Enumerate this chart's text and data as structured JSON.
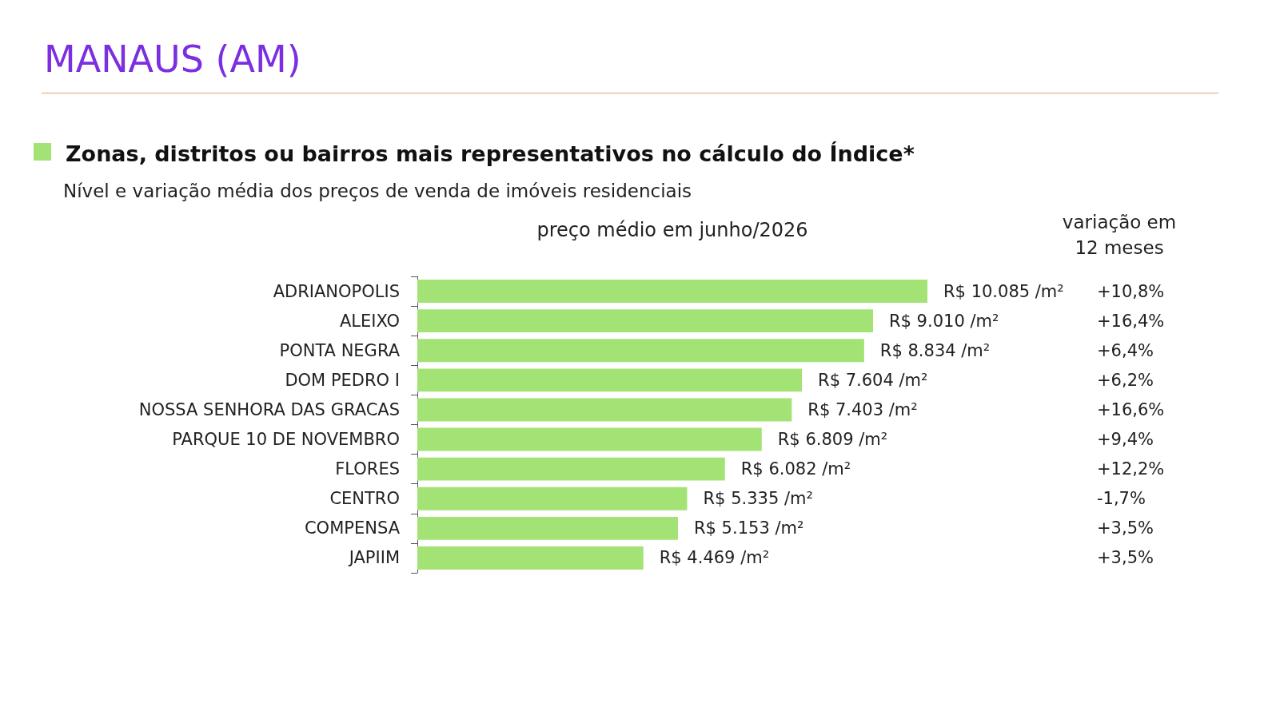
{
  "chart_data": {
    "type": "bar",
    "orientation": "horizontal",
    "title": "MANAUS (AM)",
    "subtitle": "Zonas, distritos ou bairros mais representativos no cálculo do Índice*",
    "xlabel": "preço médio em junho/2026",
    "categories": [
      "ADRIANOPOLIS",
      "ALEIXO",
      "PONTA NEGRA",
      "DOM PEDRO I",
      "NOSSA SENHORA DAS GRACAS",
      "PARQUE 10 DE NOVEMBRO",
      "FLORES",
      "CENTRO",
      "COMPENSA",
      "JAPIIM"
    ],
    "values": [
      10085,
      9010,
      8834,
      7604,
      7403,
      6809,
      6082,
      5335,
      5153,
      4469
    ],
    "value_labels": [
      "R$ 10.085 /m²",
      "R$ 9.010 /m²",
      "R$ 8.834 /m²",
      "R$ 7.604 /m²",
      "R$ 7.403 /m²",
      "R$ 6.809 /m²",
      "R$ 6.082 /m²",
      "R$ 5.335 /m²",
      "R$ 5.153 /m²",
      "R$ 4.469 /m²"
    ],
    "color": "#a3e376",
    "grid": false,
    "annotations": [
      "Nível e variação média dos preços de venda de imóveis residenciais",
      "variação em\n12 meses",
      "+10,8%",
      "+16,4%",
      "+6,4%",
      "+6,2%",
      "+16,6%",
      "+9,4%",
      "+12,2%",
      "-1,7%",
      "+3,5%",
      "+3,5%"
    ]
  }
}
